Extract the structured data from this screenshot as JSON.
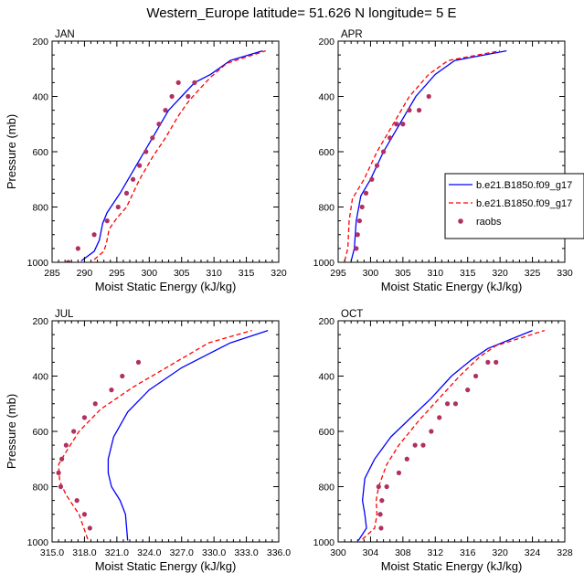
{
  "figure": {
    "title": "Western_Europe  latitude= 51.626 N longitude= 5 E"
  },
  "legend": {
    "entries": [
      {
        "label": "b.e21.B1850.f09_g17",
        "color": "#0000ff",
        "style": "solid"
      },
      {
        "label": "b.e21.B1850.f09_g17",
        "color": "#ff0000",
        "style": "dashed"
      },
      {
        "label": "raobs",
        "color": "#b03060",
        "style": "dots"
      }
    ]
  },
  "chart_data": [
    {
      "type": "line",
      "panel_label": "JAN",
      "xlabel": "Moist Static Energy (kJ/kg)",
      "ylabel": "Pressure (mb)",
      "xlim": [
        285,
        320
      ],
      "ylim": [
        1000,
        200
      ],
      "xticks": [
        285,
        290,
        295,
        300,
        305,
        310,
        315,
        320
      ],
      "xtick_labels": [
        "285",
        "290",
        "295",
        "300",
        "305",
        "310",
        "315",
        "320"
      ],
      "yticks": [
        200,
        400,
        600,
        800,
        1000
      ],
      "ytick_labels": [
        "200",
        "400",
        "600",
        "800",
        "1000"
      ],
      "series": [
        {
          "color": "#0000ff",
          "style": "solid",
          "x": [
            289.5,
            291.5,
            292.3,
            292.8,
            293.5,
            295.5,
            298.0,
            300.5,
            303.0,
            305.0,
            307.0,
            309.5,
            312.5,
            317.5
          ],
          "y": [
            995,
            960,
            920,
            860,
            820,
            750,
            650,
            550,
            450,
            400,
            350,
            320,
            270,
            235
          ]
        },
        {
          "color": "#ff0000",
          "style": "dashed",
          "x": [
            291.5,
            293.0,
            293.4,
            293.8,
            295.0,
            296.5,
            298.5,
            300.5,
            302.5,
            304.5,
            306.0,
            307.5,
            309.5,
            312.0,
            318.0
          ],
          "y": [
            990,
            960,
            930,
            880,
            840,
            800,
            700,
            620,
            550,
            470,
            420,
            380,
            330,
            280,
            235
          ]
        },
        {
          "color": "#b03060",
          "style": "dots",
          "x": [
            287.5,
            289.0,
            291.5,
            293.5,
            295.2,
            296.5,
            297.5,
            298.5,
            299.5,
            300.5,
            301.5,
            302.5,
            303.5,
            304.5,
            306.0,
            307.0
          ],
          "y": [
            1000,
            950,
            900,
            850,
            800,
            750,
            700,
            650,
            600,
            550,
            500,
            450,
            400,
            350,
            400,
            350
          ]
        }
      ]
    },
    {
      "type": "line",
      "panel_label": "APR",
      "xlabel": "Moist Static Energy (kJ/kg)",
      "ylabel": "",
      "xlim": [
        295,
        330
      ],
      "ylim": [
        1000,
        200
      ],
      "xticks": [
        295,
        300,
        305,
        310,
        315,
        320,
        325,
        330
      ],
      "xtick_labels": [
        "295",
        "300",
        "305",
        "310",
        "315",
        "320",
        "325",
        "330"
      ],
      "yticks": [
        200,
        400,
        600,
        800,
        1000
      ],
      "ytick_labels": [
        "200",
        "400",
        "600",
        "800",
        "1000"
      ],
      "series": [
        {
          "color": "#0000ff",
          "style": "solid",
          "x": [
            297.0,
            297.5,
            297.8,
            298.5,
            300.0,
            302.0,
            304.5,
            307.0,
            310.0,
            313.0,
            321.0
          ],
          "y": [
            995,
            950,
            850,
            760,
            700,
            600,
            500,
            400,
            320,
            270,
            235
          ]
        },
        {
          "color": "#ff0000",
          "style": "dashed",
          "x": [
            296.0,
            296.5,
            296.7,
            297.2,
            299.0,
            301.0,
            303.5,
            306.0,
            309.0,
            312.0,
            320.0
          ],
          "y": [
            995,
            950,
            850,
            770,
            700,
            600,
            500,
            400,
            320,
            270,
            235
          ]
        },
        {
          "color": "#b03060",
          "style": "dots",
          "x": [
            297.8,
            298.0,
            298.3,
            298.7,
            299.3,
            300.2,
            301.0,
            302.0,
            303.0,
            304.0,
            305.0,
            306.0,
            307.5,
            309.0
          ],
          "y": [
            950,
            900,
            850,
            800,
            750,
            700,
            650,
            600,
            550,
            500,
            500,
            450,
            450,
            400
          ]
        }
      ]
    },
    {
      "type": "line",
      "panel_label": "JUL",
      "xlabel": "Moist Static Energy (kJ/kg)",
      "ylabel": "Pressure (mb)",
      "xlim": [
        315,
        336
      ],
      "ylim": [
        1000,
        200
      ],
      "xticks": [
        315,
        318,
        321,
        324,
        327,
        330,
        333,
        336
      ],
      "xtick_labels": [
        "315.0",
        "318.0",
        "321.0",
        "324.0",
        "327.0",
        "330.0",
        "333.0",
        "336.0"
      ],
      "yticks": [
        200,
        400,
        600,
        800,
        1000
      ],
      "ytick_labels": [
        "200",
        "400",
        "600",
        "800",
        "1000"
      ],
      "series": [
        {
          "color": "#0000ff",
          "style": "solid",
          "x": [
            322.0,
            321.8,
            321.3,
            320.5,
            320.2,
            320.2,
            320.7,
            322.0,
            324.0,
            327.0,
            329.5,
            331.5,
            335.0
          ],
          "y": [
            995,
            900,
            850,
            800,
            750,
            700,
            620,
            530,
            450,
            370,
            320,
            280,
            235
          ]
        },
        {
          "color": "#ff0000",
          "style": "dashed",
          "x": [
            318.3,
            317.5,
            316.3,
            315.7,
            315.6,
            316.2,
            317.5,
            319.5,
            322.5,
            326.0,
            329.5,
            333.5
          ],
          "y": [
            990,
            900,
            830,
            780,
            720,
            680,
            600,
            520,
            440,
            360,
            280,
            235
          ]
        },
        {
          "color": "#b03060",
          "style": "dots",
          "x": [
            318.5,
            318.0,
            317.3,
            315.8,
            315.6,
            315.9,
            316.3,
            317.0,
            318.0,
            319.0,
            320.5,
            321.5,
            323.0
          ],
          "y": [
            950,
            900,
            850,
            800,
            750,
            700,
            650,
            600,
            550,
            500,
            450,
            400,
            350
          ]
        }
      ]
    },
    {
      "type": "line",
      "panel_label": "OCT",
      "xlabel": "Moist Static Energy (kJ/kg)",
      "ylabel": "",
      "xlim": [
        300,
        328
      ],
      "ylim": [
        1000,
        200
      ],
      "xticks": [
        300,
        304,
        308,
        312,
        316,
        320,
        324,
        328
      ],
      "xtick_labels": [
        "300",
        "304",
        "308",
        "312",
        "316",
        "320",
        "324",
        "328"
      ],
      "yticks": [
        200,
        400,
        600,
        800,
        1000
      ],
      "ytick_labels": [
        "200",
        "400",
        "600",
        "800",
        "1000"
      ],
      "series": [
        {
          "color": "#0000ff",
          "style": "solid",
          "x": [
            302.5,
            303.5,
            303.3,
            303.0,
            303.3,
            304.5,
            306.5,
            309.0,
            311.5,
            314.0,
            316.5,
            318.5,
            324.0
          ],
          "y": [
            995,
            950,
            900,
            850,
            770,
            700,
            620,
            550,
            480,
            400,
            340,
            300,
            235
          ]
        },
        {
          "color": "#ff0000",
          "style": "dashed",
          "x": [
            303.0,
            304.5,
            304.8,
            304.7,
            305.0,
            306.0,
            307.5,
            310.0,
            312.5,
            315.0,
            317.5,
            319.5,
            325.5
          ],
          "y": [
            990,
            950,
            900,
            850,
            800,
            720,
            650,
            560,
            480,
            400,
            330,
            290,
            235
          ]
        },
        {
          "color": "#b03060",
          "style": "dots",
          "x": [
            305.3,
            305.2,
            305.4,
            305.0,
            306.0,
            307.5,
            308.5,
            309.5,
            310.5,
            311.5,
            312.5,
            313.5,
            314.5,
            316.0,
            317.0,
            318.5,
            319.5
          ],
          "y": [
            950,
            900,
            850,
            800,
            800,
            750,
            700,
            650,
            650,
            600,
            550,
            500,
            500,
            450,
            400,
            350,
            350
          ]
        }
      ]
    }
  ]
}
